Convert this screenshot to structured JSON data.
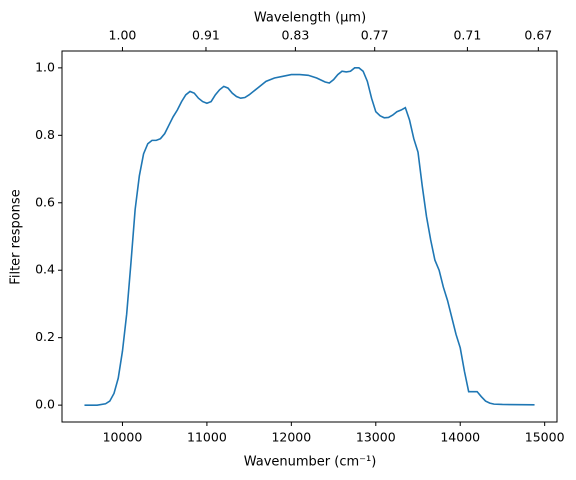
{
  "chart_data": {
    "type": "line",
    "x_label": "Wavenumber (cm⁻¹)",
    "y_label": "Filter response",
    "x2_label": "Wavelength (μm)",
    "color": "#1f77b4",
    "xlim": [
      9284,
      15146
    ],
    "ylim": [
      -0.05,
      1.05
    ],
    "xticks": [
      10000,
      11000,
      12000,
      13000,
      14000,
      15000
    ],
    "yticks": [
      {
        "value": 0,
        "label": "0.0"
      },
      {
        "value": 0.2,
        "label": "0.2"
      },
      {
        "value": 0.4,
        "label": "0.4"
      },
      {
        "value": 0.6,
        "label": "0.6"
      },
      {
        "value": 0.8,
        "label": "0.8"
      },
      {
        "value": 1,
        "label": "1.0"
      }
    ],
    "x2ticks": [
      {
        "value": 10000,
        "label": "1.00"
      },
      {
        "value": 10989,
        "label": "0.91"
      },
      {
        "value": 12048,
        "label": "0.83"
      },
      {
        "value": 12987,
        "label": "0.77"
      },
      {
        "value": 14085,
        "label": "0.71"
      },
      {
        "value": 14925,
        "label": "0.67"
      }
    ],
    "x": [
      9550,
      9700,
      9800,
      9850,
      9900,
      9950,
      10000,
      10050,
      10100,
      10150,
      10200,
      10250,
      10300,
      10350,
      10400,
      10450,
      10500,
      10550,
      10600,
      10650,
      10700,
      10750,
      10800,
      10850,
      10900,
      10950,
      11000,
      11050,
      11100,
      11150,
      11200,
      11250,
      11300,
      11350,
      11400,
      11450,
      11500,
      11600,
      11700,
      11800,
      11900,
      12000,
      12100,
      12200,
      12300,
      12400,
      12450,
      12500,
      12550,
      12600,
      12650,
      12700,
      12750,
      12800,
      12850,
      12900,
      12950,
      13000,
      13050,
      13100,
      13150,
      13200,
      13250,
      13300,
      13350,
      13400,
      13450,
      13500,
      13550,
      13600,
      13650,
      13700,
      13750,
      13800,
      13850,
      13900,
      13950,
      14000,
      14050,
      14100,
      14150,
      14200,
      14250,
      14300,
      14350,
      14400,
      14500,
      14880
    ],
    "values": [
      0,
      0,
      0.004,
      0.012,
      0.035,
      0.08,
      0.16,
      0.27,
      0.42,
      0.58,
      0.68,
      0.745,
      0.775,
      0.785,
      0.785,
      0.79,
      0.805,
      0.83,
      0.855,
      0.875,
      0.9,
      0.92,
      0.93,
      0.925,
      0.91,
      0.9,
      0.895,
      0.9,
      0.92,
      0.935,
      0.945,
      0.94,
      0.925,
      0.915,
      0.91,
      0.912,
      0.92,
      0.94,
      0.96,
      0.97,
      0.975,
      0.98,
      0.98,
      0.978,
      0.97,
      0.958,
      0.955,
      0.965,
      0.98,
      0.99,
      0.988,
      0.99,
      1.0,
      1.0,
      0.99,
      0.96,
      0.91,
      0.87,
      0.858,
      0.852,
      0.853,
      0.86,
      0.87,
      0.875,
      0.882,
      0.845,
      0.79,
      0.75,
      0.65,
      0.56,
      0.49,
      0.43,
      0.4,
      0.35,
      0.31,
      0.26,
      0.21,
      0.17,
      0.1,
      0.04,
      0.04,
      0.04,
      0.025,
      0.012,
      0.006,
      0.003,
      0.002,
      0.001
    ]
  }
}
